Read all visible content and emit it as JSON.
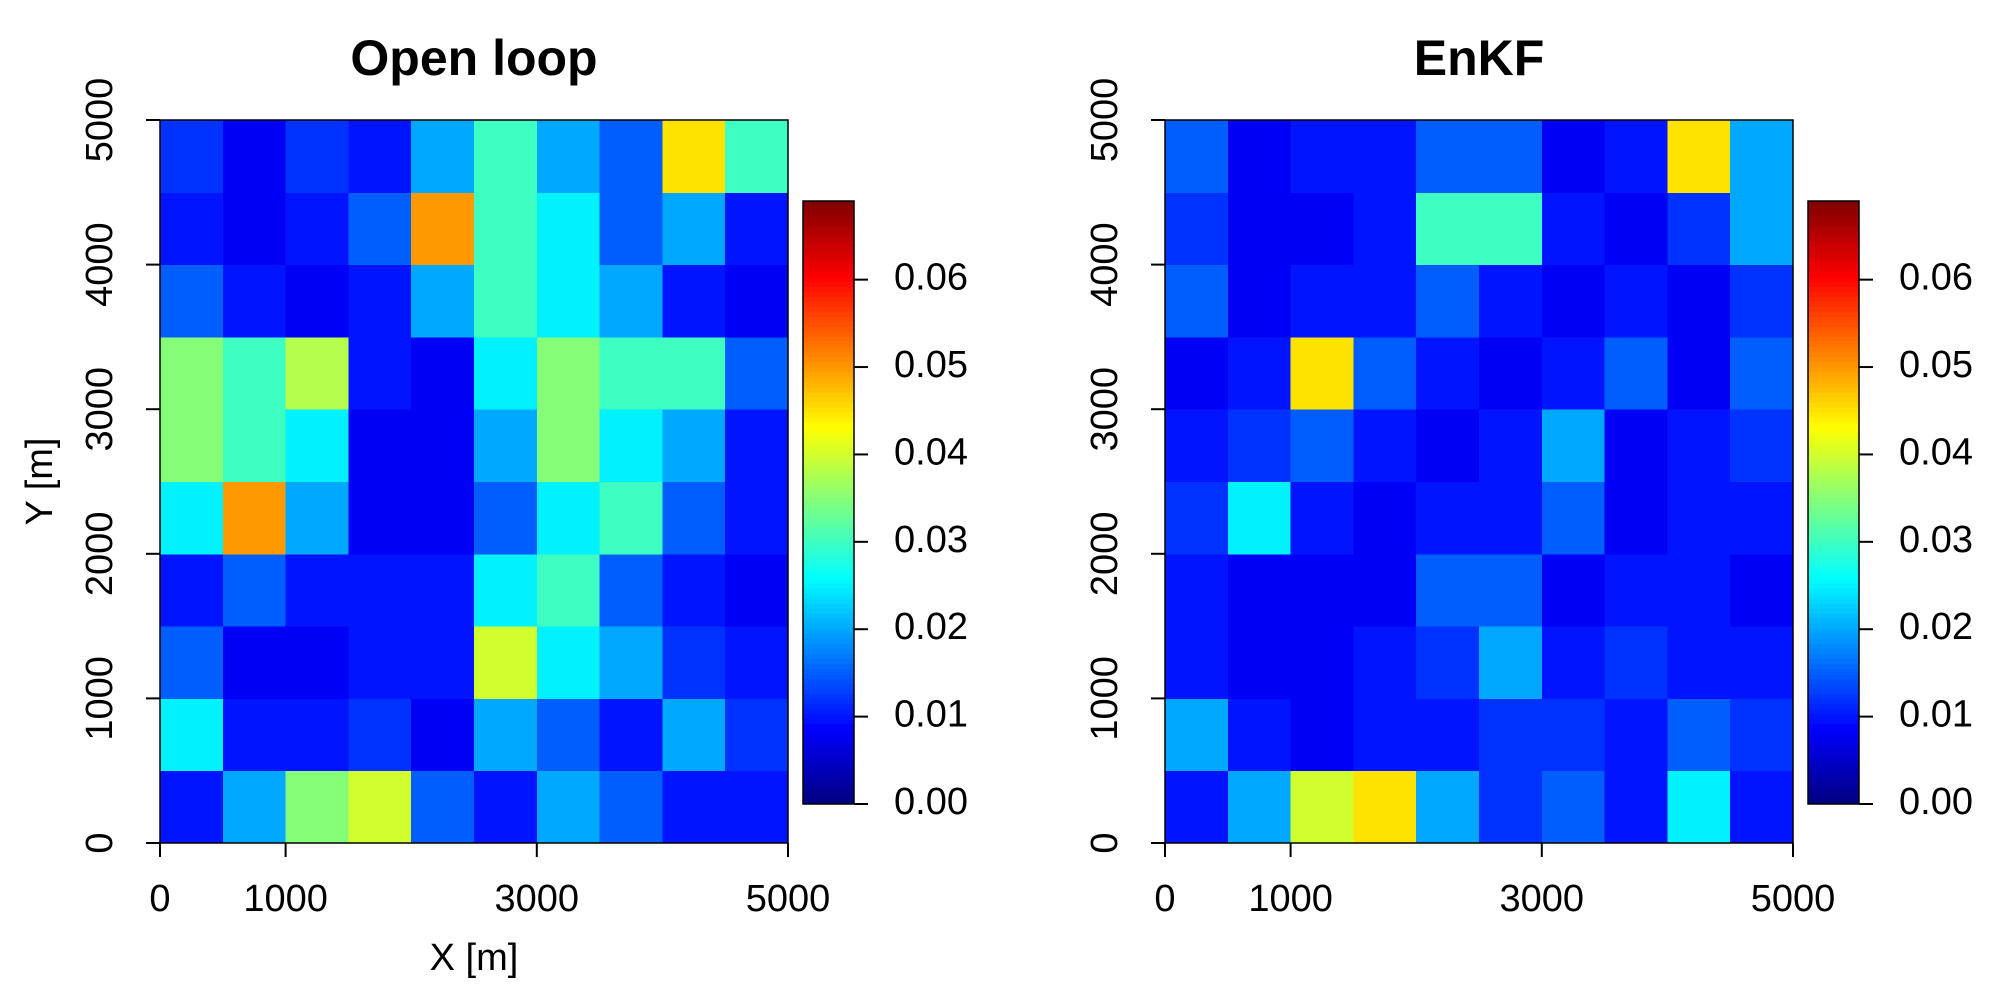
{
  "chart_data": [
    {
      "type": "heatmap",
      "title": "Open loop",
      "xlabel": "X [m]",
      "ylabel": "Y [m]",
      "xbins": [
        0,
        500,
        1000,
        1500,
        2000,
        2500,
        3000,
        3500,
        4000,
        4500,
        5000
      ],
      "ybins": [
        0,
        500,
        1000,
        1500,
        2000,
        2500,
        3000,
        3500,
        4000,
        4500,
        5000
      ],
      "z": [
        [
          0.01,
          0.02,
          0.035,
          0.04,
          0.015,
          0.01,
          0.02,
          0.015,
          0.01,
          0.01
        ],
        [
          0.025,
          0.01,
          0.01,
          0.012,
          0.008,
          0.02,
          0.015,
          0.01,
          0.02,
          0.012
        ],
        [
          0.015,
          0.008,
          0.008,
          0.01,
          0.01,
          0.04,
          0.025,
          0.02,
          0.012,
          0.01
        ],
        [
          0.01,
          0.015,
          0.01,
          0.01,
          0.01,
          0.025,
          0.03,
          0.015,
          0.01,
          0.008
        ],
        [
          0.025,
          0.05,
          0.02,
          0.008,
          0.008,
          0.015,
          0.025,
          0.03,
          0.015,
          0.01
        ],
        [
          0.035,
          0.03,
          0.025,
          0.008,
          0.008,
          0.02,
          0.035,
          0.025,
          0.02,
          0.01
        ],
        [
          0.035,
          0.03,
          0.038,
          0.01,
          0.008,
          0.025,
          0.035,
          0.03,
          0.03,
          0.015
        ],
        [
          0.015,
          0.01,
          0.008,
          0.01,
          0.02,
          0.03,
          0.025,
          0.02,
          0.01,
          0.008
        ],
        [
          0.01,
          0.008,
          0.01,
          0.015,
          0.05,
          0.03,
          0.025,
          0.015,
          0.02,
          0.01
        ],
        [
          0.012,
          0.008,
          0.012,
          0.01,
          0.02,
          0.03,
          0.02,
          0.015,
          0.045,
          0.03
        ]
      ],
      "xlim": [
        0,
        5000
      ],
      "ylim": [
        0,
        5000
      ],
      "xticks": [
        0,
        1000,
        3000,
        5000
      ],
      "yticks": [
        0,
        1000,
        2000,
        3000,
        4000,
        5000
      ],
      "zlim": [
        0,
        0.069
      ],
      "zticks": [
        {
          "value": 0,
          "label": "0.00"
        },
        0.01,
        0.02,
        0.03,
        0.04,
        0.05,
        0.06
      ],
      "colormap": [
        "#00007f",
        "#0000ff",
        "#007fff",
        "#00ffff",
        "#7fff7f",
        "#ffff00",
        "#ff7f00",
        "#ff0000",
        "#7f0000"
      ]
    },
    {
      "type": "heatmap",
      "title": "EnKF",
      "xbins": [
        0,
        500,
        1000,
        1500,
        2000,
        2500,
        3000,
        3500,
        4000,
        4500,
        5000
      ],
      "ybins": [
        0,
        500,
        1000,
        1500,
        2000,
        2500,
        3000,
        3500,
        4000,
        4500,
        5000
      ],
      "z": [
        [
          0.01,
          0.02,
          0.04,
          0.045,
          0.02,
          0.012,
          0.015,
          0.01,
          0.025,
          0.01
        ],
        [
          0.02,
          0.01,
          0.008,
          0.01,
          0.01,
          0.012,
          0.012,
          0.01,
          0.015,
          0.012
        ],
        [
          0.01,
          0.008,
          0.008,
          0.01,
          0.012,
          0.02,
          0.01,
          0.012,
          0.01,
          0.01
        ],
        [
          0.01,
          0.008,
          0.008,
          0.008,
          0.015,
          0.015,
          0.008,
          0.01,
          0.01,
          0.008
        ],
        [
          0.012,
          0.025,
          0.01,
          0.008,
          0.01,
          0.01,
          0.015,
          0.008,
          0.01,
          0.01
        ],
        [
          0.01,
          0.012,
          0.015,
          0.01,
          0.008,
          0.01,
          0.02,
          0.008,
          0.01,
          0.012
        ],
        [
          0.008,
          0.01,
          0.045,
          0.015,
          0.01,
          0.008,
          0.01,
          0.015,
          0.008,
          0.015
        ],
        [
          0.015,
          0.008,
          0.01,
          0.01,
          0.015,
          0.01,
          0.008,
          0.01,
          0.008,
          0.012
        ],
        [
          0.012,
          0.008,
          0.008,
          0.01,
          0.03,
          0.03,
          0.01,
          0.008,
          0.012,
          0.02
        ],
        [
          0.015,
          0.008,
          0.01,
          0.01,
          0.015,
          0.015,
          0.008,
          0.01,
          0.045,
          0.02
        ]
      ],
      "xlim": [
        0,
        5000
      ],
      "ylim": [
        0,
        5000
      ],
      "xticks": [
        0,
        1000,
        3000,
        5000
      ],
      "yticks": [
        0,
        1000,
        2000,
        3000,
        4000,
        5000
      ],
      "zlim": [
        0,
        0.069
      ],
      "zticks": [
        {
          "value": 0,
          "label": "0.00"
        },
        0.01,
        0.02,
        0.03,
        0.04,
        0.05,
        0.06
      ],
      "colormap": [
        "#00007f",
        "#0000ff",
        "#007fff",
        "#00ffff",
        "#7fff7f",
        "#ffff00",
        "#ff7f00",
        "#ff0000",
        "#7f0000"
      ]
    }
  ]
}
